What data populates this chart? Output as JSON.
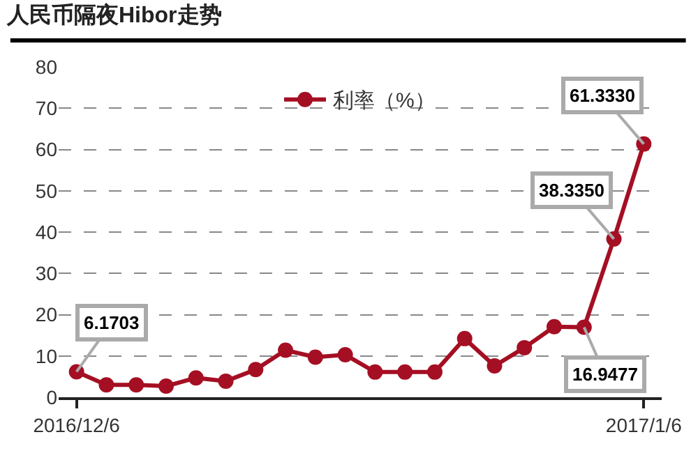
{
  "chart_data": {
    "type": "line",
    "title": "人民币隔夜Hibor走势",
    "categories": [
      "2016/12/6",
      null,
      null,
      null,
      null,
      null,
      null,
      null,
      null,
      null,
      null,
      null,
      null,
      null,
      null,
      null,
      null,
      null,
      null,
      "2017/1/6"
    ],
    "series": [
      {
        "name": "利率（%）",
        "color": "#a50f23",
        "values": [
          6.1703,
          3.0,
          3.0,
          2.7,
          4.7,
          3.9,
          6.7,
          11.4,
          9.7,
          10.3,
          6.1,
          6.1,
          6.1,
          14.2,
          7.6,
          12.0,
          17.1,
          16.9477,
          38.335,
          61.333
        ],
        "value_labels": [
          "6.1703",
          null,
          null,
          null,
          null,
          null,
          null,
          null,
          null,
          null,
          null,
          null,
          null,
          null,
          null,
          null,
          null,
          "16.9477",
          "38.3350",
          "61.3330"
        ]
      }
    ],
    "ylim": [
      0,
      80
    ],
    "yticks": [
      0,
      10,
      20,
      30,
      40,
      50,
      60,
      70,
      80
    ],
    "grid": "y",
    "legend": "top",
    "marker": "circle",
    "line_style": "solid"
  }
}
